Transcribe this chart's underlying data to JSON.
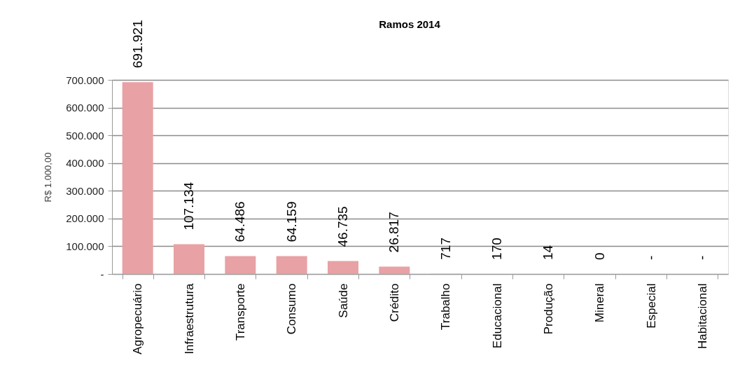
{
  "chart_data": {
    "type": "bar",
    "title": "Ramos 2014",
    "ylabel": "R$ 1.000,00",
    "categories": [
      "Agropecuário",
      "Infraestrutura",
      "Transporte",
      "Consumo",
      "Saúde",
      "Crédito",
      "Trabalho",
      "Educacional",
      "Produção",
      "Mineral",
      "Especial",
      "Habitacional"
    ],
    "values": [
      691921,
      107134,
      64486,
      64159,
      46735,
      26817,
      717,
      170,
      14,
      0,
      0,
      0
    ],
    "value_labels": [
      "691.921",
      "107.134",
      "64.486",
      "64.159",
      "46.735",
      "26.817",
      "717",
      "170",
      "14",
      "0",
      "-",
      "-"
    ],
    "color": "#e8a1a4",
    "ylim": [
      0,
      700000
    ],
    "yticks": [
      {
        "value": 0,
        "label": "-"
      },
      {
        "value": 100000,
        "label": "100.000"
      },
      {
        "value": 200000,
        "label": "200.000"
      },
      {
        "value": 300000,
        "label": "300.000"
      },
      {
        "value": 400000,
        "label": "400.000"
      },
      {
        "value": 500000,
        "label": "500.000"
      },
      {
        "value": 600000,
        "label": "600.000"
      },
      {
        "value": 700000,
        "label": "700.000"
      }
    ],
    "grid": "y"
  }
}
